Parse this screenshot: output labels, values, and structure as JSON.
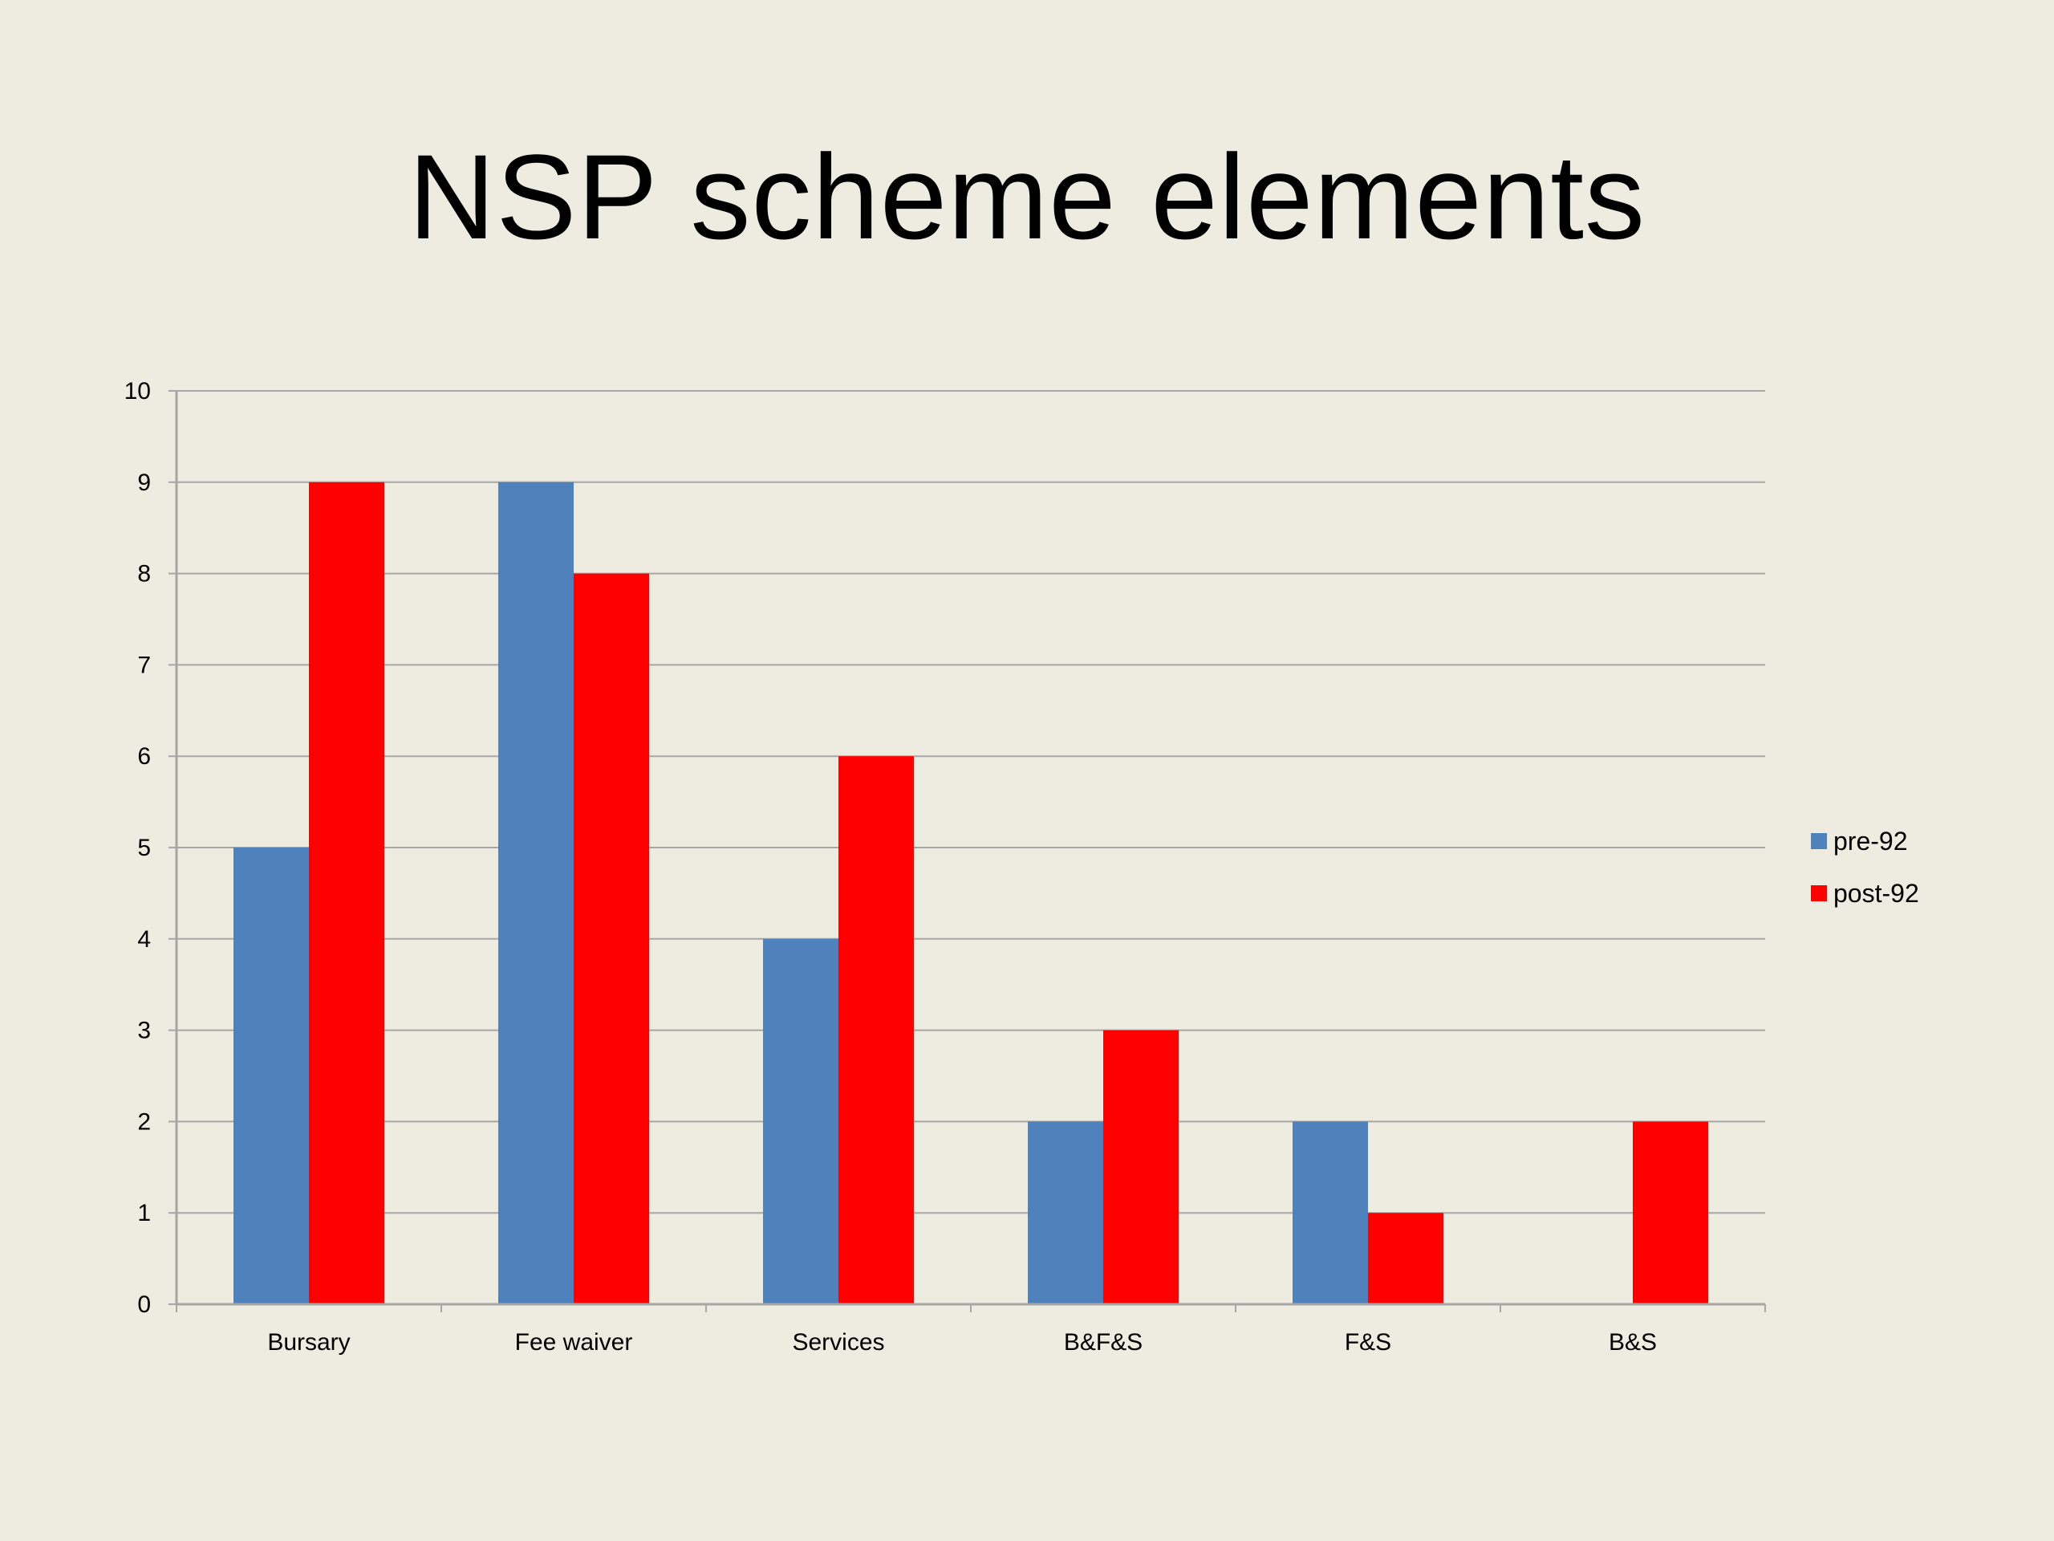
{
  "slide": {
    "title": "NSP scheme elements"
  },
  "colors": {
    "pre92": "#4f81bd",
    "post92": "#ff0000",
    "background": "#eeebe0",
    "gridline": "#a6a6a6"
  },
  "chart_data": {
    "type": "bar",
    "title": "NSP scheme elements",
    "categories": [
      "Bursary",
      "Fee waiver",
      "Services",
      "B&F&S",
      "F&S",
      "B&S"
    ],
    "series": [
      {
        "name": "pre-92",
        "color": "#4f81bd",
        "values": [
          5,
          9,
          4,
          2,
          2,
          0
        ]
      },
      {
        "name": "post-92",
        "color": "#ff0000",
        "values": [
          9,
          8,
          6,
          3,
          1,
          2
        ]
      }
    ],
    "xlabel": "",
    "ylabel": "",
    "ylim": [
      0,
      10
    ],
    "yticks": [
      0,
      1,
      2,
      3,
      4,
      5,
      6,
      7,
      8,
      9,
      10
    ],
    "grid": true,
    "legend_position": "right"
  }
}
